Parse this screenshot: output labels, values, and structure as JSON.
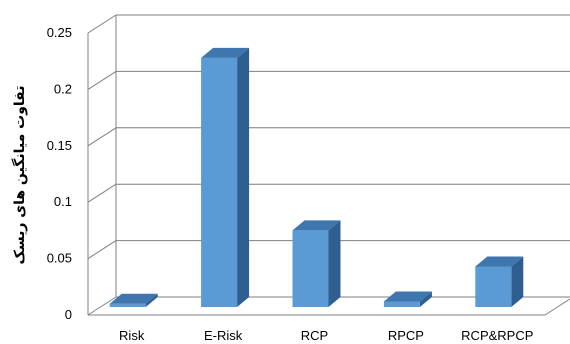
{
  "chart_data": {
    "type": "bar",
    "style": "3d-column",
    "categories": [
      "Risk",
      "E-Risk",
      "RCP",
      "RPCP",
      "RCP&RPCP"
    ],
    "values": [
      0.01,
      0.228,
      0.075,
      0.012,
      0.043
    ],
    "ylabel": "تفاوت میانگین های ریسک",
    "ylim": [
      0,
      0.25
    ],
    "yticks": [
      "0",
      "0.05",
      "0.1",
      "0.15",
      "0.2",
      "0.25"
    ],
    "grid": true,
    "legend": "none",
    "colors": {
      "bar_front": "#5b9bd5",
      "bar_top": "#3f76ae",
      "bar_side": "#2f5f90",
      "grid": "#7f7f7f"
    }
  }
}
